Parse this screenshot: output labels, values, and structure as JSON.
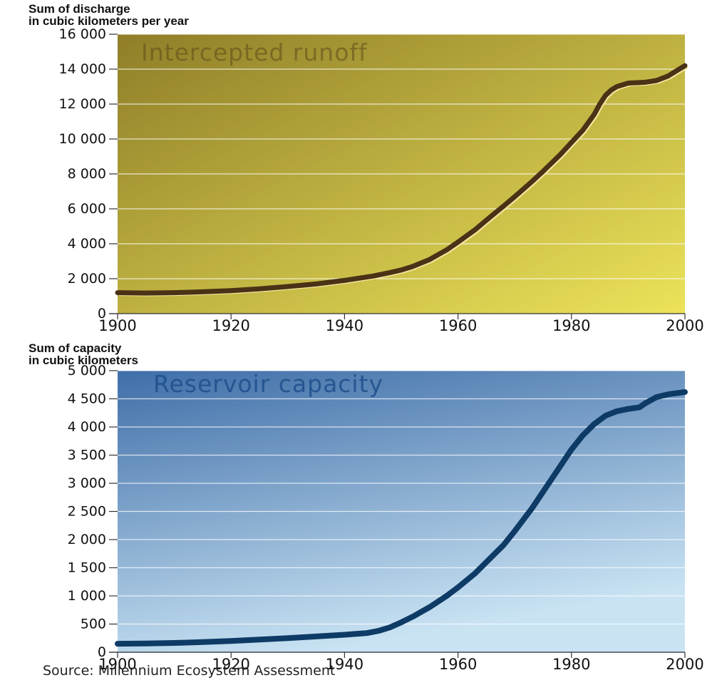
{
  "source": "Source: Millennium Ecosystem Assessment",
  "colors": {
    "runoff_bg_top": "#8f7e28",
    "runoff_bg_bottom": "#ece35a",
    "runoff_line": "#4a3216",
    "capacity_bg_top": "#3f6ea8",
    "capacity_bg_bottom": "#c9e3f3",
    "capacity_line": "#0e3b66"
  },
  "chart_data": [
    {
      "type": "line",
      "title": "Intercepted runoff",
      "ylabel_line1": "Sum of discharge",
      "ylabel_line2": "in cubic kilometers per year",
      "xlim": [
        1900,
        2000
      ],
      "ylim": [
        0,
        16000
      ],
      "x_ticks": [
        "1900",
        "1920",
        "1940",
        "1960",
        "1980",
        "2000"
      ],
      "y_ticks": [
        "0",
        "2 000",
        "4 000",
        "6 000",
        "8 000",
        "10 000",
        "12 000",
        "14 000",
        "16 000"
      ],
      "grid": true,
      "series": [
        {
          "x": [
            1900,
            1905,
            1910,
            1915,
            1920,
            1925,
            1930,
            1935,
            1940,
            1945,
            1948,
            1950,
            1952,
            1955,
            1958,
            1960,
            1963,
            1965,
            1968,
            1970,
            1973,
            1975,
            1978,
            1980,
            1982,
            1984,
            1985,
            1986,
            1987,
            1988,
            1990,
            1993,
            1995,
            1997,
            1999,
            2000
          ],
          "y": [
            1200,
            1180,
            1200,
            1250,
            1320,
            1420,
            1550,
            1700,
            1900,
            2150,
            2350,
            2500,
            2700,
            3100,
            3650,
            4100,
            4800,
            5350,
            6150,
            6700,
            7550,
            8150,
            9100,
            9800,
            10500,
            11400,
            12000,
            12500,
            12800,
            13000,
            13200,
            13250,
            13350,
            13600,
            14000,
            14200
          ]
        }
      ]
    },
    {
      "type": "line",
      "title": "Reservoir capacity",
      "ylabel_line1": "Sum of capacity",
      "ylabel_line2": "in cubic kilometers",
      "xlim": [
        1900,
        2000
      ],
      "ylim": [
        0,
        5000
      ],
      "x_ticks": [
        "1900",
        "1920",
        "1940",
        "1960",
        "1980",
        "2000"
      ],
      "y_ticks": [
        "0",
        "500",
        "1 000",
        "1 500",
        "2 000",
        "2 500",
        "3 000",
        "3 500",
        "4 000",
        "4 500",
        "5 000"
      ],
      "grid": true,
      "series": [
        {
          "x": [
            1900,
            1905,
            1910,
            1915,
            1920,
            1925,
            1930,
            1935,
            1940,
            1944,
            1946,
            1948,
            1950,
            1952,
            1955,
            1958,
            1960,
            1963,
            1965,
            1968,
            1970,
            1973,
            1975,
            1978,
            1980,
            1982,
            1984,
            1986,
            1988,
            1990,
            1992,
            1993,
            1995,
            1997,
            2000
          ],
          "y": [
            150,
            155,
            165,
            180,
            200,
            225,
            250,
            280,
            310,
            340,
            380,
            440,
            530,
            630,
            800,
            1000,
            1150,
            1400,
            1600,
            1900,
            2150,
            2550,
            2850,
            3300,
            3600,
            3850,
            4050,
            4200,
            4280,
            4320,
            4350,
            4420,
            4530,
            4580,
            4620
          ]
        }
      ]
    }
  ]
}
